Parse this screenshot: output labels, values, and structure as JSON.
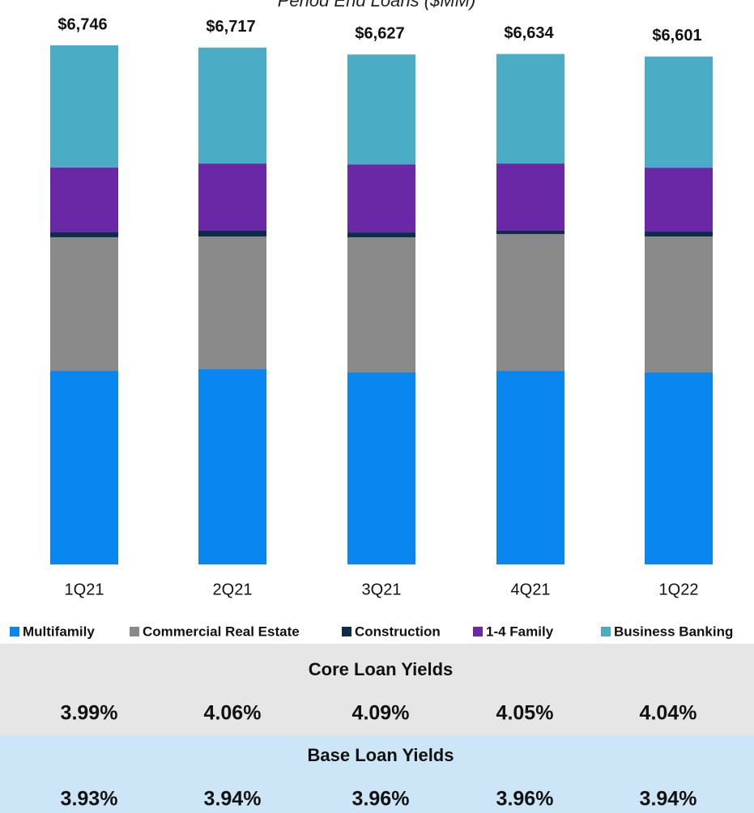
{
  "chart_data": {
    "type": "bar",
    "stacked": true,
    "title": "Period End Loans ($MM)",
    "categories": [
      "1Q21",
      "2Q21",
      "3Q21",
      "4Q21",
      "1Q22"
    ],
    "series": [
      {
        "name": "Multifamily",
        "color": "#0a86f0",
        "values": [
          2515,
          2536,
          2494,
          2515,
          2494
        ]
      },
      {
        "name": "Commercial Real Estate",
        "color": "#8a8a8a",
        "values": [
          1737,
          1726,
          1757,
          1779,
          1768
        ]
      },
      {
        "name": "Construction",
        "color": "#0d2c4a",
        "values": [
          63,
          74,
          63,
          42,
          63
        ]
      },
      {
        "name": "1-4 Family",
        "color": "#6a27a6",
        "values": [
          842,
          873,
          884,
          873,
          831
        ]
      },
      {
        "name": "Business Banking",
        "color": "#4bacc6",
        "values": [
          1589,
          1508,
          1429,
          1425,
          1445
        ]
      }
    ],
    "totals": [
      6746,
      6717,
      6627,
      6634,
      6601
    ],
    "total_labels": [
      "$6,746",
      "$6,717",
      "$6,627",
      "$6,634",
      "$6,601"
    ]
  },
  "table": {
    "rows": [
      {
        "title": "Core Loan Yields",
        "values": [
          "3.99%",
          "4.06%",
          "4.09%",
          "4.05%",
          "4.04%"
        ]
      },
      {
        "title": "Base Loan Yields",
        "values": [
          "3.93%",
          "3.94%",
          "3.96%",
          "3.96%",
          "3.94%"
        ]
      }
    ]
  }
}
